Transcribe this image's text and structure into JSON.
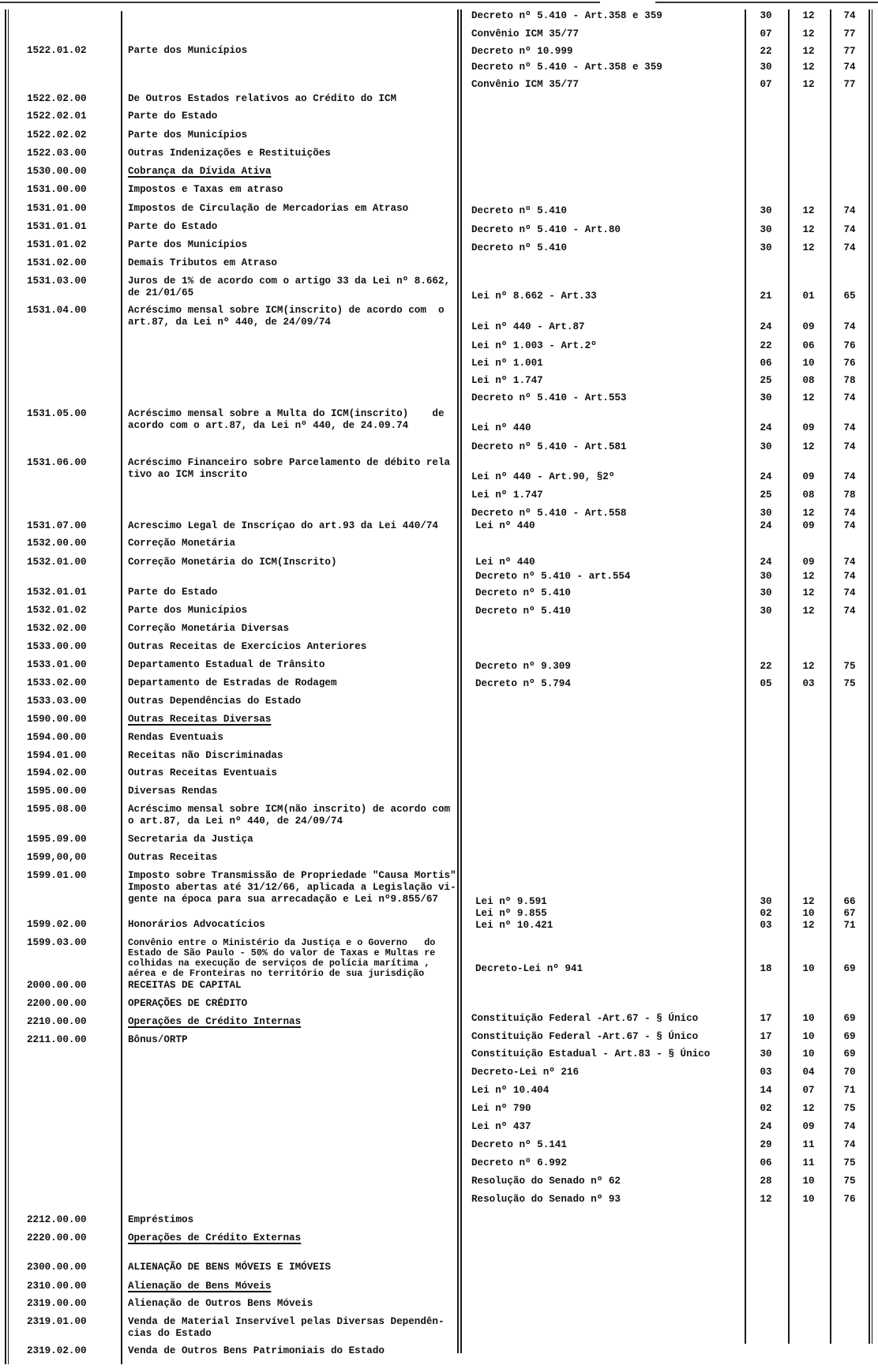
{
  "document": {
    "accounts": [
      {
        "code": "1522.01.02",
        "lines": [
          "Parte dos Municípios"
        ]
      },
      {
        "code": "1522.02.00",
        "lines": [
          "De Outros Estados relativos ao Crédito do ICM"
        ]
      },
      {
        "code": "1522.02.01",
        "lines": [
          "Parte do Estado"
        ]
      },
      {
        "code": "1522.02.02",
        "lines": [
          "Parte dos Municípios"
        ]
      },
      {
        "code": "1522.03.00",
        "lines": [
          "Outras Indenizações e Restituições"
        ]
      },
      {
        "code": "1530.00.00",
        "lines": [
          "Cobrança da Dívida Ativa"
        ],
        "underline": true
      },
      {
        "code": "1531.00.00",
        "lines": [
          "Impostos e Taxas em atraso"
        ]
      },
      {
        "code": "1531.01.00",
        "lines": [
          "Impostos de Circulação de Mercadorias em Atraso"
        ]
      },
      {
        "code": "1531.01.01",
        "lines": [
          "Parte do Estado"
        ]
      },
      {
        "code": "1531.01.02",
        "lines": [
          "Parte dos Municípios"
        ]
      },
      {
        "code": "1531.02.00",
        "lines": [
          "Demais Tributos em Atraso"
        ]
      },
      {
        "code": "1531.03.00",
        "lines": [
          "Juros de 1% de acordo com o artigo 33 da Lei nº 8.662,",
          "de 21/01/65"
        ]
      },
      {
        "code": "1531.04.00",
        "lines": [
          "Acréscimo mensal sobre ICM(inscrito) de acordo com  o",
          "art.87, da Lei nº 440, de 24/09/74"
        ]
      },
      {
        "code": "1531.05.00",
        "lines": [
          "Acréscimo mensal sobre a Multa do ICM(inscrito)    de",
          "acordo com o art.87, da Lei nº 440, de 24.09.74"
        ]
      },
      {
        "code": "1531.06.00",
        "lines": [
          "Acréscimo Financeiro sobre Parcelamento de débito rela",
          "tivo ao ICM inscrito"
        ]
      },
      {
        "code": "1531.07.00",
        "lines": [
          "Acrescimo Legal de Inscriçao do art.93 da Lei 440/74"
        ]
      },
      {
        "code": "1532.00.00",
        "lines": [
          "Correção Monetária"
        ]
      },
      {
        "code": "1532.01.00",
        "lines": [
          "Correção Monetária do ICM(Inscrito)"
        ]
      },
      {
        "code": "1532.01.01",
        "lines": [
          "Parte do Estado"
        ]
      },
      {
        "code": "1532.01.02",
        "lines": [
          "Parte dos Municípios"
        ]
      },
      {
        "code": "1532.02.00",
        "lines": [
          "Correção Monetária Diversas"
        ]
      },
      {
        "code": "1533.00.00",
        "lines": [
          "Outras Receitas de Exercícios Anteriores"
        ]
      },
      {
        "code": "1533.01.00",
        "lines": [
          "Departamento Estadual de Trânsito"
        ]
      },
      {
        "code": "1533.02.00",
        "lines": [
          "Departamento de Estradas de Rodagem"
        ]
      },
      {
        "code": "1533.03.00",
        "lines": [
          "Outras Dependências do Estado"
        ]
      },
      {
        "code": "1590.00.00",
        "lines": [
          "Outras Receitas Diversas"
        ],
        "underline": true
      },
      {
        "code": "1594.00.00",
        "lines": [
          "Rendas Eventuais"
        ]
      },
      {
        "code": "1594.01.00",
        "lines": [
          "Receitas não Discriminadas"
        ]
      },
      {
        "code": "1594.02.00",
        "lines": [
          "Outras Receitas Eventuais"
        ]
      },
      {
        "code": "1595.00.00",
        "lines": [
          "Diversas Rendas"
        ]
      },
      {
        "code": "1595.08.00",
        "lines": [
          "Acréscimo mensal sobre ICM(não inscrito) de acordo com",
          "o art.87, da Lei nº 440, de 24/09/74"
        ]
      },
      {
        "code": "1595.09.00",
        "lines": [
          "Secretaria da Justiça"
        ]
      },
      {
        "code": "1599,00,00",
        "lines": [
          "Outras Receitas"
        ]
      },
      {
        "code": "1599.01.00",
        "lines": [
          "Imposto sobre Transmissão de Propriedade \"Causa Mortis\"",
          "Imposto abertas até 31/12/66, aplicada a Legislação vi-",
          "gente na época para sua arrecadação e Lei nº9.855/67"
        ]
      },
      {
        "code": "1599.02.00",
        "lines": [
          "Honorários Advocatícios"
        ]
      },
      {
        "code": "1599.03.00",
        "lines": [
          "Convênio entre o Ministério da Justiça e o Governo   do",
          "Estado de São Paulo - 50% do valor de Taxas e Multas re",
          "colhidas na execução de serviços de polícia marítima ,",
          "aérea e de Fronteiras no território de sua jurisdição"
        ]
      },
      {
        "code": "2000.00.00",
        "lines": [
          "RECEITAS DE CAPITAL"
        ]
      },
      {
        "code": "2200.00.00",
        "lines": [
          "OPERAÇÕES DE CRÉDITO"
        ]
      },
      {
        "code": "2210.00.00",
        "lines": [
          "Operações de Crédito Internas"
        ],
        "underline": true
      },
      {
        "code": "2211.00.00",
        "lines": [
          "Bônus/ORTP"
        ]
      },
      {
        "code": "2212.00.00",
        "lines": [
          "Empréstimos"
        ]
      },
      {
        "code": "2220.00.00",
        "lines": [
          "Operações de Crédito Externas"
        ],
        "underline": true
      },
      {
        "code": "2300.00.00",
        "lines": [
          "ALIENAÇÃO DE BENS MÓVEIS E IMÓVEIS"
        ]
      },
      {
        "code": "2310.00.00",
        "lines": [
          "Alienação de Bens Móveis"
        ],
        "underline": true
      },
      {
        "code": "2319.00.00",
        "lines": [
          "Alienação de Outros Bens Móveis"
        ]
      },
      {
        "code": "2319.01.00",
        "lines": [
          "Venda de Material Inservível pelas Diversas Dependên-",
          "cias do Estado"
        ]
      },
      {
        "code": "2319.02.00",
        "lines": [
          "Venda de Outros Bens Patrimoniais do Estado"
        ]
      }
    ],
    "legislation": [
      {
        "ref": "Decreto nº 5.410 - Art.358 e 359",
        "day": "30",
        "month": "12",
        "year": "74"
      },
      {
        "ref": "Convênio ICM 35/77",
        "day": "07",
        "month": "12",
        "year": "77"
      },
      {
        "ref": "Decreto nº 10.999",
        "day": "22",
        "month": "12",
        "year": "77"
      },
      {
        "ref": "Decreto nº 5.410 - Art.358 e 359",
        "day": "30",
        "month": "12",
        "year": "74"
      },
      {
        "ref": "Convênio ICM 35/77",
        "day": "07",
        "month": "12",
        "year": "77"
      },
      {
        "ref": "Decreto nº 5.410",
        "day": "30",
        "month": "12",
        "year": "74"
      },
      {
        "ref": "Decreto nº 5.410 - Art.80",
        "day": "30",
        "month": "12",
        "year": "74"
      },
      {
        "ref": "Decreto nº 5.410",
        "day": "30",
        "month": "12",
        "year": "74"
      },
      {
        "ref": "Lei nº 8.662 - Art.33",
        "day": "21",
        "month": "01",
        "year": "65"
      },
      {
        "ref": "Lei nº 440 - Art.87",
        "day": "24",
        "month": "09",
        "year": "74"
      },
      {
        "ref": "Lei nº 1.003 - Art.2º",
        "day": "22",
        "month": "06",
        "year": "76"
      },
      {
        "ref": "Lei nº 1.001",
        "day": "06",
        "month": "10",
        "year": "76"
      },
      {
        "ref": "Lei nº 1.747",
        "day": "25",
        "month": "08",
        "year": "78"
      },
      {
        "ref": "Decreto nº 5.410 - Art.553",
        "day": "30",
        "month": "12",
        "year": "74"
      },
      {
        "ref": "Lei nº 440",
        "day": "24",
        "month": "09",
        "year": "74"
      },
      {
        "ref": "Decreto nº 5.410 - Art.581",
        "day": "30",
        "month": "12",
        "year": "74"
      },
      {
        "ref": "Lei nº 440 - Art.90, §2º",
        "day": "24",
        "month": "09",
        "year": "74"
      },
      {
        "ref": "Lei nº 1.747",
        "day": "25",
        "month": "08",
        "year": "78"
      },
      {
        "ref": "Decreto nº 5.410 - Art.558",
        "day": "30",
        "month": "12",
        "year": "74"
      },
      {
        "ref": "Lei nº 440",
        "day": "24",
        "month": "09",
        "year": "74"
      },
      {
        "ref": "Lei nº 440",
        "day": "24",
        "month": "09",
        "year": "74"
      },
      {
        "ref": "Decreto nº 5.410 - art.554",
        "day": "30",
        "month": "12",
        "year": "74"
      },
      {
        "ref": "Decreto nº 5.410",
        "day": "30",
        "month": "12",
        "year": "74"
      },
      {
        "ref": "Decreto nº 5.410",
        "day": "30",
        "month": "12",
        "year": "74"
      },
      {
        "ref": "Decreto nº 9.309",
        "day": "22",
        "month": "12",
        "year": "75"
      },
      {
        "ref": "Decreto nº 5.794",
        "day": "05",
        "month": "03",
        "year": "75"
      },
      {
        "ref": "Lei nº 9.591",
        "day": "30",
        "month": "12",
        "year": "66"
      },
      {
        "ref": "Lei nº 9.855",
        "day": "02",
        "month": "10",
        "year": "67"
      },
      {
        "ref": "Lei nº 10.421",
        "day": "03",
        "month": "12",
        "year": "71"
      },
      {
        "ref": "Decreto-Lei nº 941",
        "day": "18",
        "month": "10",
        "year": "69"
      },
      {
        "ref": "Constituição Federal -Art.67 - § Único",
        "day": "17",
        "month": "10",
        "year": "69"
      },
      {
        "ref": "Constituição Federal -Art.67 - § Único",
        "day": "17",
        "month": "10",
        "year": "69"
      },
      {
        "ref": "Constituição Estadual - Art.83 - § Único",
        "day": "30",
        "month": "10",
        "year": "69"
      },
      {
        "ref": "Decreto-Lei nº 216",
        "day": "03",
        "month": "04",
        "year": "70"
      },
      {
        "ref": "Lei nº 10.404",
        "day": "14",
        "month": "07",
        "year": "71"
      },
      {
        "ref": "Lei nº 790",
        "day": "02",
        "month": "12",
        "year": "75"
      },
      {
        "ref": "Lei nº 437",
        "day": "24",
        "month": "09",
        "year": "74"
      },
      {
        "ref": "Decreto nº 5.141",
        "day": "29",
        "month": "11",
        "year": "74"
      },
      {
        "ref": "Decreto nº 6.992",
        "day": "06",
        "month": "11",
        "year": "75"
      },
      {
        "ref": "Resolução do Senado nº 62",
        "day": "28",
        "month": "10",
        "year": "75"
      },
      {
        "ref": "Resolução do Senado nº 93",
        "day": "12",
        "month": "10",
        "year": "76"
      }
    ]
  }
}
